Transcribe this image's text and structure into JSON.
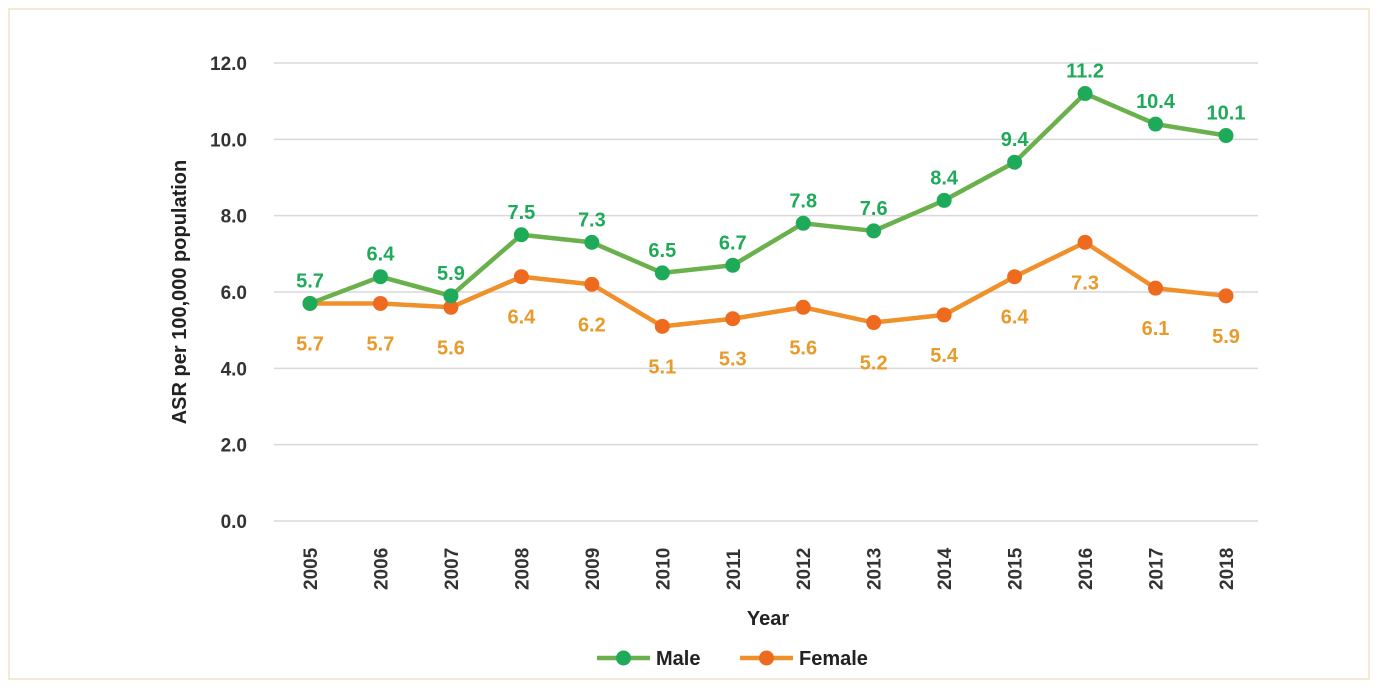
{
  "chart_data": {
    "type": "line",
    "title": "",
    "xlabel": "Year",
    "ylabel": "ASR per 100,000 population",
    "categories": [
      "2005",
      "2006",
      "2007",
      "2008",
      "2009",
      "2010",
      "2011",
      "2012",
      "2013",
      "2014",
      "2015",
      "2016",
      "2017",
      "2018"
    ],
    "ylim": [
      0,
      12
    ],
    "yticks": [
      "0.0",
      "2.0",
      "4.0",
      "6.0",
      "8.0",
      "10.0",
      "12.0"
    ],
    "grid": true,
    "legend_position": "bottom",
    "series": [
      {
        "name": "Male",
        "line_color": "#6ab04c",
        "marker_color": "#1faa5a",
        "label_color": "#1faa5a",
        "values": [
          5.7,
          6.4,
          5.9,
          7.5,
          7.3,
          6.5,
          6.7,
          7.8,
          7.6,
          8.4,
          9.4,
          11.2,
          10.4,
          10.1
        ],
        "labels": [
          "5.7",
          "6.4",
          "5.9",
          "7.5",
          "7.3",
          "6.5",
          "6.7",
          "7.8",
          "7.6",
          "8.4",
          "9.4",
          "11.2",
          "10.4",
          "10.1"
        ],
        "label_side": "above"
      },
      {
        "name": "Female",
        "line_color": "#f0902a",
        "marker_color": "#ee6a1e",
        "label_color": "#e89a2a",
        "values": [
          5.7,
          5.7,
          5.6,
          6.4,
          6.2,
          5.1,
          5.3,
          5.6,
          5.2,
          5.4,
          6.4,
          7.3,
          6.1,
          5.9
        ],
        "labels": [
          "5.7",
          "5.7",
          "5.6",
          "6.4",
          "6.2",
          "5.1",
          "5.3",
          "5.6",
          "5.2",
          "5.4",
          "6.4",
          "7.3",
          "6.1",
          "5.9"
        ],
        "label_side": "below"
      }
    ]
  }
}
